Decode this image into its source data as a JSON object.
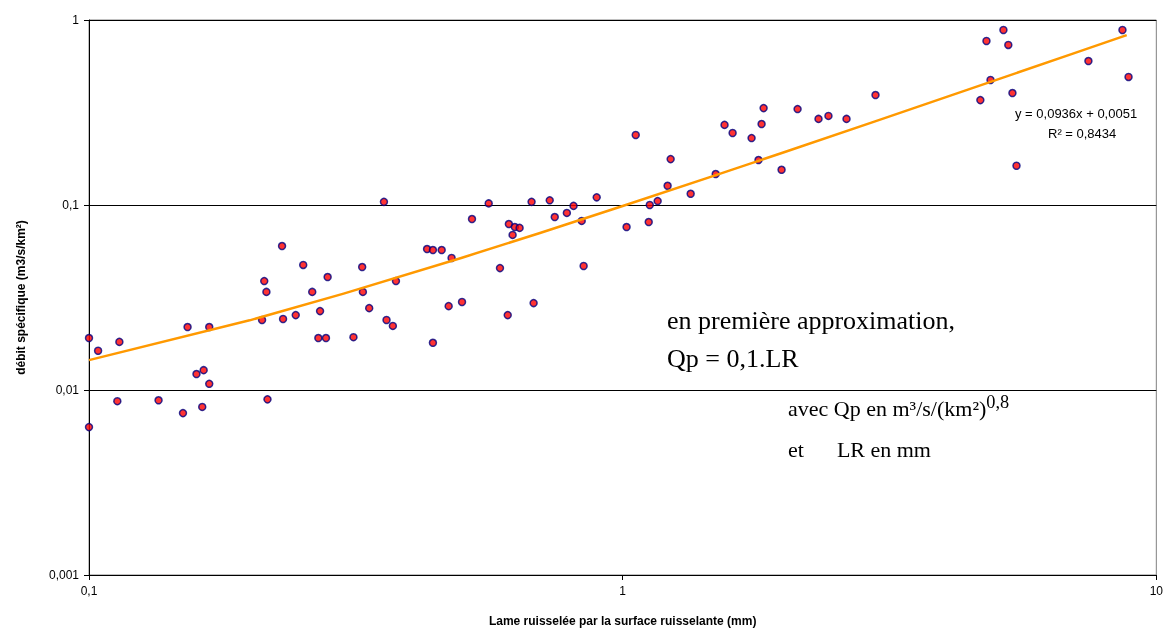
{
  "chart_data": {
    "type": "scatter",
    "xlabel": "Lame ruisselée par la surface ruisselante (mm)",
    "ylabel": "débit spécifique (m3/s/km²)",
    "log": "xy",
    "xlim": [
      0.1,
      10
    ],
    "ylim": [
      0.001,
      1
    ],
    "xticks": [
      {
        "value": 0.1,
        "label": "0,1"
      },
      1,
      10
    ],
    "yticks": [
      {
        "value": 0.001,
        "label": "0,001"
      },
      {
        "value": 0.01,
        "label": "0,01"
      },
      {
        "value": 0.1,
        "label": "0,1"
      },
      1
    ],
    "grid": "y",
    "marker": "circle",
    "annotations": [
      "y = 0,0936x + 0,0051",
      "R² = 0,8434",
      "en première approximation,",
      "Qp = 0,1.LR",
      "avec Qp en m³/s/(km²)$^{0,8}$",
      "et      LR en mm"
    ],
    "series": [
      {
        "color": "#ff0000",
        "x": [
          0.1,
          0.1,
          0.104,
          0.114,
          0.113,
          0.135,
          0.15,
          0.153,
          0.159,
          0.164,
          0.163,
          0.168,
          0.168,
          0.211,
          0.213,
          0.215,
          0.216,
          0.23,
          0.231,
          0.244,
          0.252,
          0.262,
          0.271,
          0.269,
          0.278,
          0.28,
          0.313,
          0.325,
          0.326,
          0.335,
          0.361,
          0.371,
          0.376,
          0.357,
          0.43,
          0.441,
          0.458,
          0.441,
          0.478,
          0.472,
          0.5,
          0.522,
          0.561,
          0.589,
          0.609,
          0.612,
          0.628,
          0.641,
          0.622,
          0.675,
          0.681,
          0.73,
          0.746,
          0.786,
          0.809,
          0.838,
          0.845,
          0.894,
          1.017,
          1.058,
          1.119,
          1.124,
          1.163,
          1.214,
          1.23,
          1.341,
          1.494,
          1.552,
          1.607,
          1.744,
          1.797,
          1.837,
          1.821,
          1.985,
          2.127,
          2.328,
          2.43,
          2.627,
          2.977,
          4.68,
          4.805,
          4.89,
          5.17,
          5.28,
          5.375,
          5.47,
          7.46,
          8.64,
          8.87
        ],
        "values": [
          0.0191,
          0.0063,
          0.0163,
          0.0182,
          0.0087,
          0.0088,
          0.0075,
          0.0219,
          0.0122,
          0.0128,
          0.0081,
          0.0219,
          0.0108,
          0.0239,
          0.0388,
          0.0339,
          0.0089,
          0.06,
          0.0242,
          0.0254,
          0.0474,
          0.0339,
          0.0267,
          0.0191,
          0.0191,
          0.0408,
          0.0193,
          0.0462,
          0.0339,
          0.0277,
          0.0239,
          0.0222,
          0.0388,
          0.104,
          0.0578,
          0.0571,
          0.0571,
          0.018,
          0.0517,
          0.0284,
          0.0299,
          0.084,
          0.102,
          0.0456,
          0.0254,
          0.0789,
          0.076,
          0.0752,
          0.0689,
          0.104,
          0.0295,
          0.106,
          0.0861,
          0.0906,
          0.0989,
          0.082,
          0.0468,
          0.11,
          0.076,
          0.239,
          0.0809,
          0.1,
          0.105,
          0.127,
          0.177,
          0.115,
          0.147,
          0.271,
          0.245,
          0.23,
          0.175,
          0.334,
          0.274,
          0.155,
          0.33,
          0.292,
          0.303,
          0.292,
          0.393,
          0.369,
          0.77,
          0.474,
          0.883,
          0.733,
          0.403,
          0.163,
          0.6,
          0.883,
          0.492
        ]
      },
      {
        "type": "line",
        "color": "#ff9900",
        "marker": "none",
        "line_style": "solid",
        "x": [
          0.1,
          0.2,
          0.3,
          0.5,
          0.7,
          1,
          1.5,
          2,
          3,
          5,
          7,
          8.8
        ],
        "values": [
          0.0145,
          0.0238,
          0.0332,
          0.0519,
          0.0706,
          0.0987,
          0.1455,
          0.1923,
          0.286,
          0.473,
          0.66,
          0.829
        ]
      }
    ]
  }
}
